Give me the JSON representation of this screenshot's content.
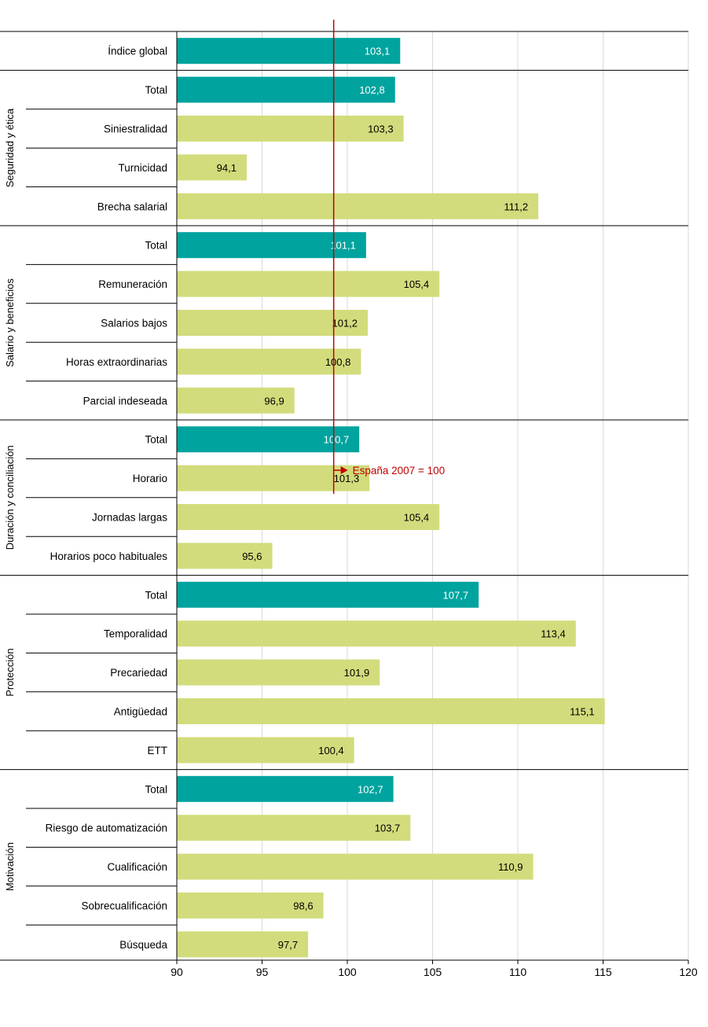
{
  "chart_data": {
    "type": "bar",
    "orientation": "horizontal",
    "xlim": [
      90,
      120
    ],
    "xticks": [
      90,
      95,
      100,
      105,
      110,
      115,
      120
    ],
    "xtick_labels": [
      "90",
      "95",
      "100",
      "105",
      "110",
      "115",
      "120"
    ],
    "grid": true,
    "reference": {
      "value": 99.2,
      "label": "España 2007 = 100"
    },
    "colors": {
      "total": "#00a39e",
      "sub": "#d2dc7c",
      "reference": "#c00000",
      "grid": "#d9d9d9",
      "axis": "#000000"
    },
    "groups": [
      {
        "name": "",
        "bars": [
          {
            "label": "Índice global",
            "value": 103.1,
            "display": "103,1",
            "kind": "total"
          }
        ]
      },
      {
        "name": "Seguridad y ética",
        "bars": [
          {
            "label": "Total",
            "value": 102.8,
            "display": "102,8",
            "kind": "total"
          },
          {
            "label": "Siniestralidad",
            "value": 103.3,
            "display": "103,3",
            "kind": "sub"
          },
          {
            "label": "Turnicidad",
            "value": 94.1,
            "display": "94,1",
            "kind": "sub"
          },
          {
            "label": "Brecha salarial",
            "value": 111.2,
            "display": "111,2",
            "kind": "sub"
          }
        ]
      },
      {
        "name": "Salario y beneficios",
        "bars": [
          {
            "label": "Total",
            "value": 101.1,
            "display": "101,1",
            "kind": "total"
          },
          {
            "label": "Remuneración",
            "value": 105.4,
            "display": "105,4",
            "kind": "sub"
          },
          {
            "label": "Salarios bajos",
            "value": 101.2,
            "display": "101,2",
            "kind": "sub"
          },
          {
            "label": "Horas extraordinarias",
            "value": 100.8,
            "display": "100,8",
            "kind": "sub"
          },
          {
            "label": "Parcial indeseada",
            "value": 96.9,
            "display": "96,9",
            "kind": "sub"
          }
        ]
      },
      {
        "name": "Duración y conciliación",
        "bars": [
          {
            "label": "Total",
            "value": 100.7,
            "display": "100,7",
            "kind": "total"
          },
          {
            "label": "Horario",
            "value": 101.3,
            "display": "101,3",
            "kind": "sub"
          },
          {
            "label": "Jornadas largas",
            "value": 105.4,
            "display": "105,4",
            "kind": "sub"
          },
          {
            "label": "Horarios poco habituales",
            "value": 95.6,
            "display": "95,6",
            "kind": "sub"
          }
        ]
      },
      {
        "name": "Protección",
        "bars": [
          {
            "label": "Total",
            "value": 107.7,
            "display": "107,7",
            "kind": "total"
          },
          {
            "label": "Temporalidad",
            "value": 113.4,
            "display": "113,4",
            "kind": "sub"
          },
          {
            "label": "Precariedad",
            "value": 101.9,
            "display": "101,9",
            "kind": "sub"
          },
          {
            "label": "Antigüedad",
            "value": 115.1,
            "display": "115,1",
            "kind": "sub"
          },
          {
            "label": "ETT",
            "value": 100.4,
            "display": "100,4",
            "kind": "sub"
          }
        ]
      },
      {
        "name": "Motivación",
        "bars": [
          {
            "label": "Total",
            "value": 102.7,
            "display": "102,7",
            "kind": "total"
          },
          {
            "label": "Riesgo de automatización",
            "value": 103.7,
            "display": "103,7",
            "kind": "sub"
          },
          {
            "label": "Cualificación",
            "value": 110.9,
            "display": "110,9",
            "kind": "sub"
          },
          {
            "label": "Sobrecualificación",
            "value": 98.6,
            "display": "98,6",
            "kind": "sub"
          },
          {
            "label": "Búsqueda",
            "value": 97.7,
            "display": "97,7",
            "kind": "sub"
          }
        ]
      }
    ]
  }
}
